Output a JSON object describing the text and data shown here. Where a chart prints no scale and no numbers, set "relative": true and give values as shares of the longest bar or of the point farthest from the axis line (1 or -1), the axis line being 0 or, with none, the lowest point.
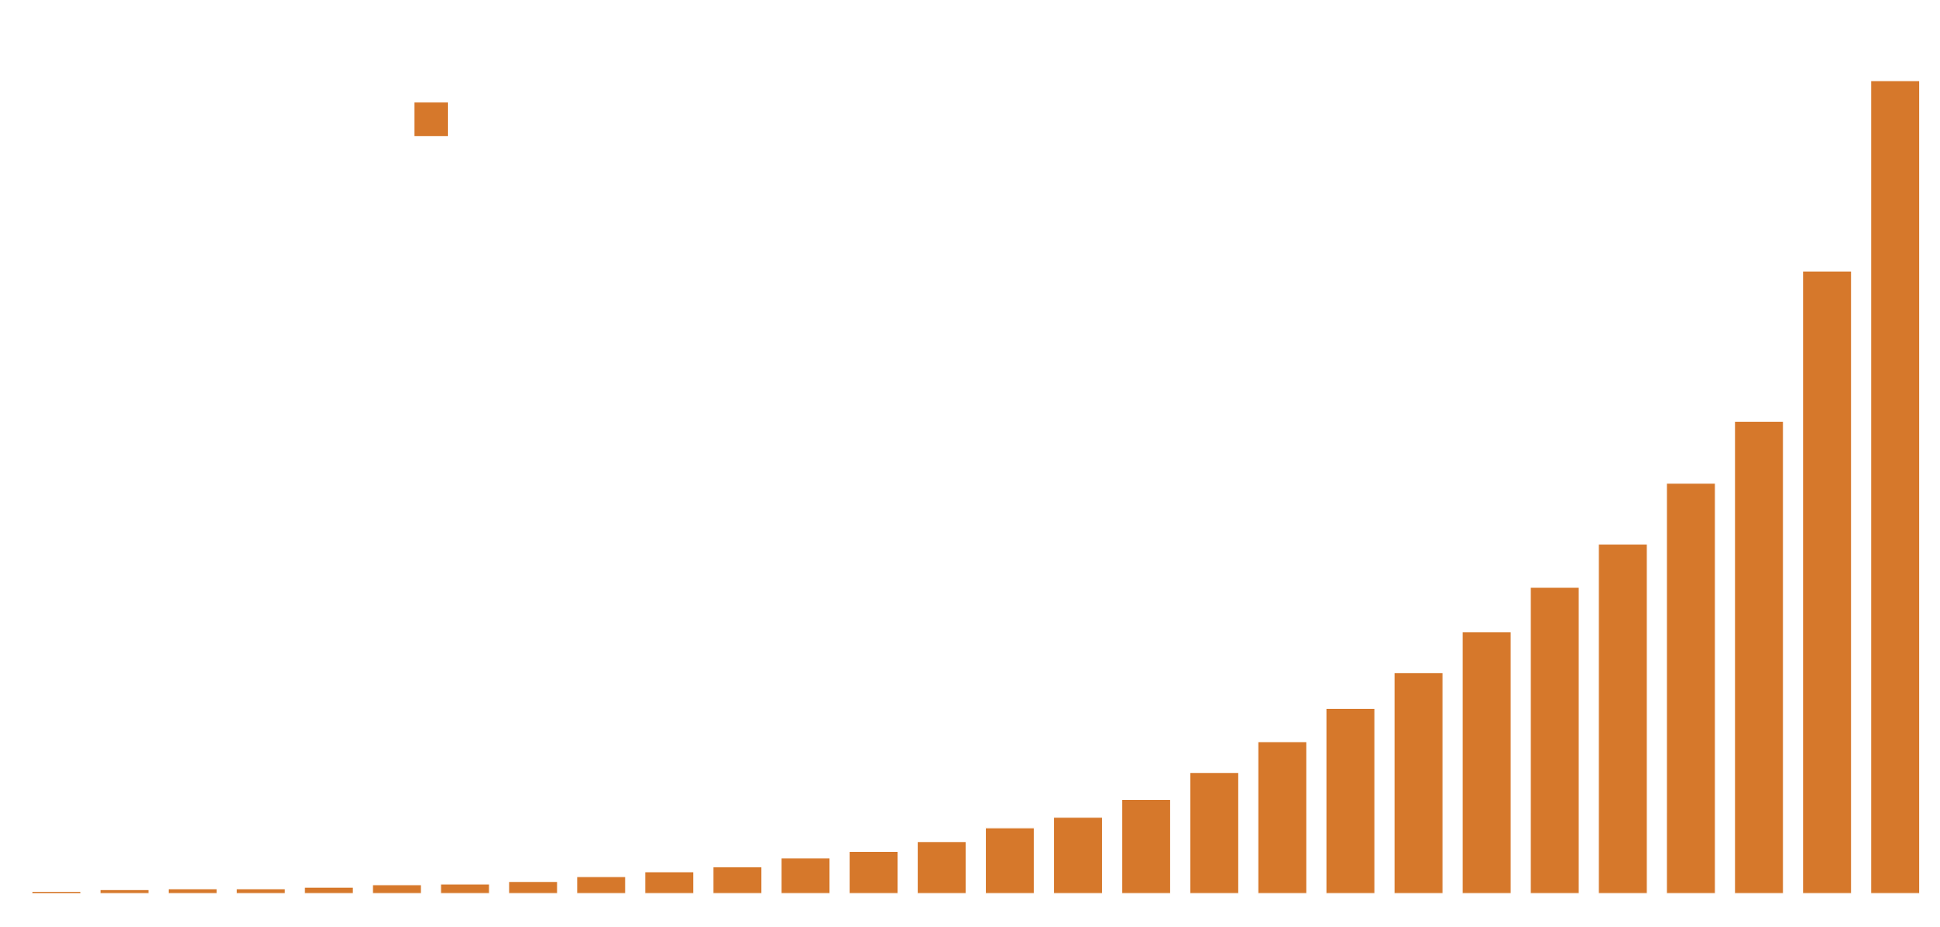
{
  "chart_data": {
    "type": "bar",
    "relative": true,
    "categories": [
      null,
      null,
      null,
      null,
      null,
      null,
      null,
      null,
      null,
      null,
      null,
      null,
      null,
      null,
      null,
      null,
      null,
      null,
      null,
      null,
      null,
      null,
      null,
      null,
      null,
      null,
      null,
      null
    ],
    "series": [
      {
        "color": "#d6782b",
        "values": [
          0.003,
          0.005,
          0.006,
          0.006,
          0.008,
          0.011,
          0.012,
          0.015,
          0.021,
          0.027,
          0.033,
          0.044,
          0.052,
          0.064,
          0.081,
          0.094,
          0.116,
          0.149,
          0.187,
          0.228,
          0.272,
          0.322,
          0.377,
          0.43,
          0.505,
          0.581,
          0.766,
          1
        ]
      }
    ]
  }
}
